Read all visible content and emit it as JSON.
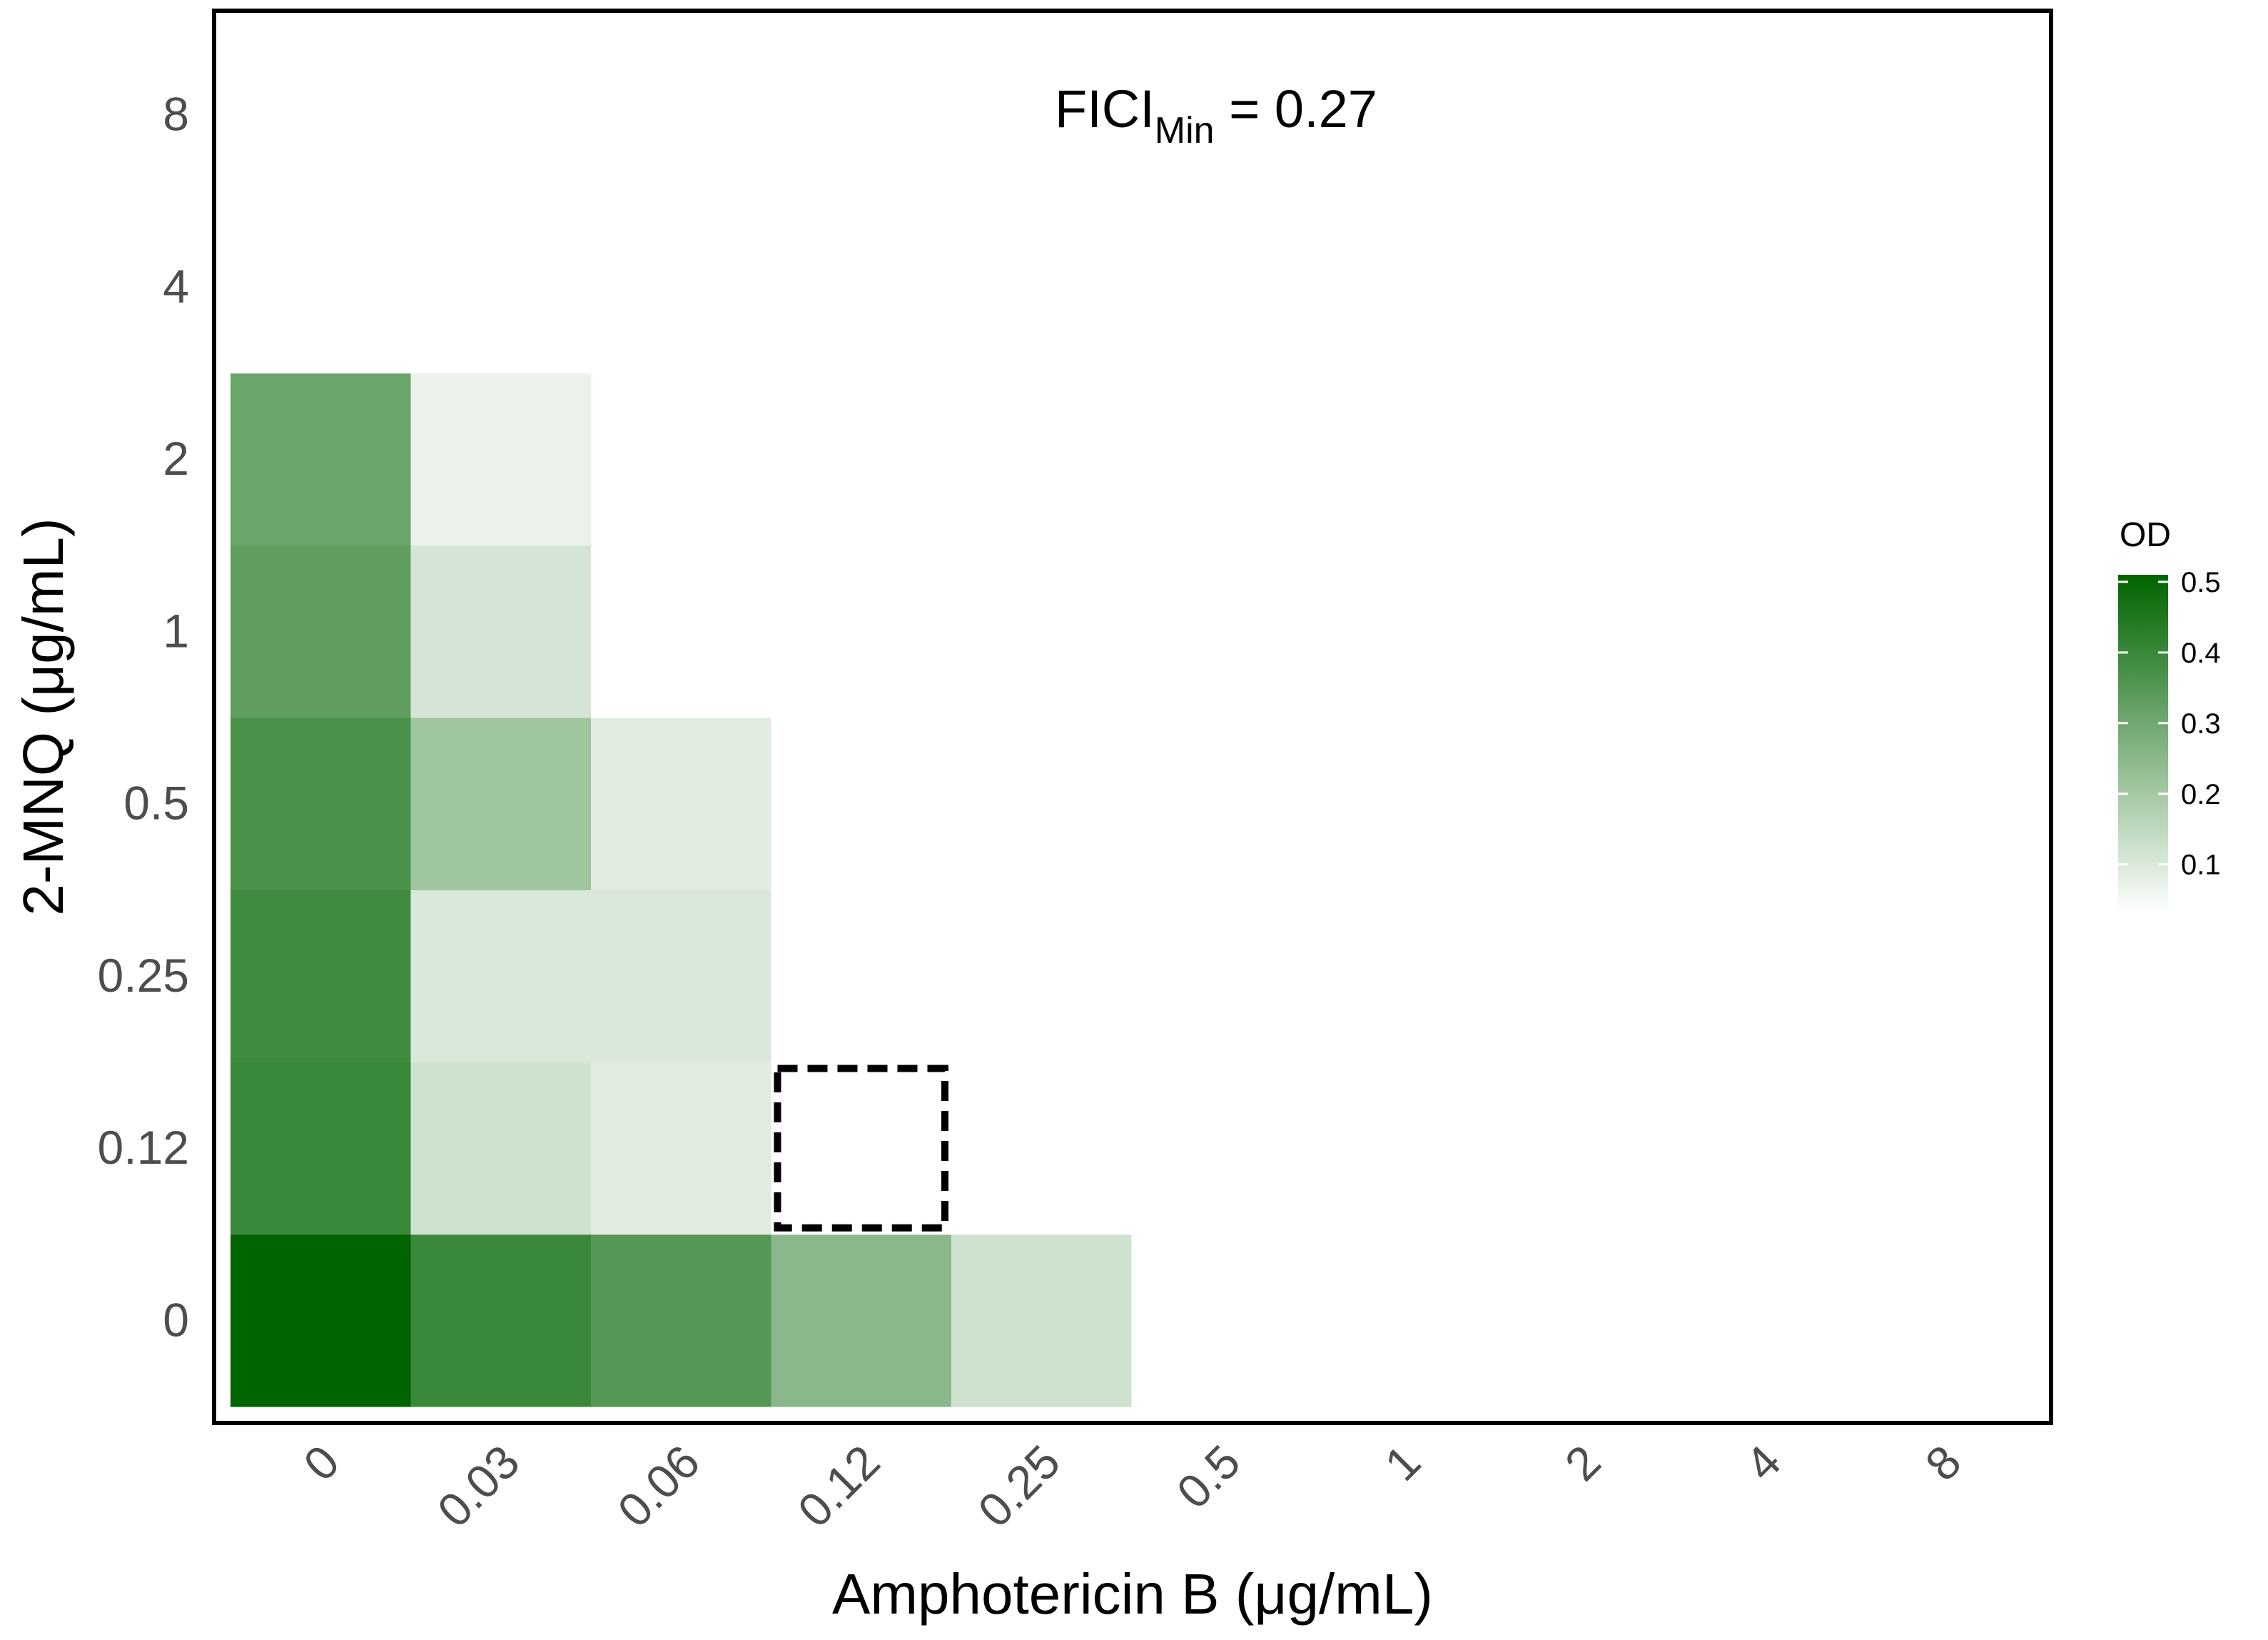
{
  "chart_data": {
    "type": "heatmap",
    "xlabel": "Amphotericin B (μg/mL)",
    "ylabel": "2-MNQ (μg/mL)",
    "x_categories": [
      "0",
      "0.03",
      "0.06",
      "0.12",
      "0.25",
      "0.5",
      "1",
      "2",
      "4",
      "8"
    ],
    "y_categories": [
      "0",
      "0.12",
      "0.25",
      "0.5",
      "1",
      "2",
      "4",
      "8"
    ],
    "annotation": {
      "prefix": "FICI",
      "subscript": "Min",
      "suffix": " = 0.27"
    },
    "highlight_cell": {
      "x": "0.12",
      "y": "0.12",
      "style": "dashed"
    },
    "colorbar": {
      "title": "OD",
      "ticks": [
        "0.1",
        "0.2",
        "0.3",
        "0.4",
        "0.5"
      ],
      "min": 0.03,
      "max": 0.51,
      "low_color": "#ffffff",
      "high_color": "#006400"
    },
    "values": [
      [
        0.51,
        0.4,
        0.35,
        0.25,
        0.12,
        0.02,
        0.01,
        0.01,
        0.01,
        0.01
      ],
      [
        0.4,
        0.12,
        0.09,
        0.02,
        0.01,
        0.02,
        0.02,
        0.02,
        0.02,
        0.02
      ],
      [
        0.39,
        0.1,
        0.1,
        0.01,
        0.01,
        0.01,
        0.01,
        0.01,
        0.01,
        0.01
      ],
      [
        0.37,
        0.21,
        0.09,
        0.01,
        0.01,
        0.01,
        0.01,
        0.01,
        0.01,
        0.01
      ],
      [
        0.33,
        0.11,
        0.02,
        0.02,
        0.03,
        0.01,
        0.01,
        0.01,
        0.01,
        0.01
      ],
      [
        0.31,
        0.07,
        0.02,
        0.02,
        0.02,
        0.02,
        0.02,
        0.02,
        0.02,
        0.03
      ],
      [
        0.02,
        0.02,
        0.02,
        0.02,
        0.03,
        0.02,
        0.02,
        0.02,
        0.02,
        0.02
      ],
      [
        0.01,
        0.01,
        0.02,
        0.02,
        0.02,
        0.02,
        0.02,
        0.02,
        0.01,
        0.03
      ]
    ]
  }
}
